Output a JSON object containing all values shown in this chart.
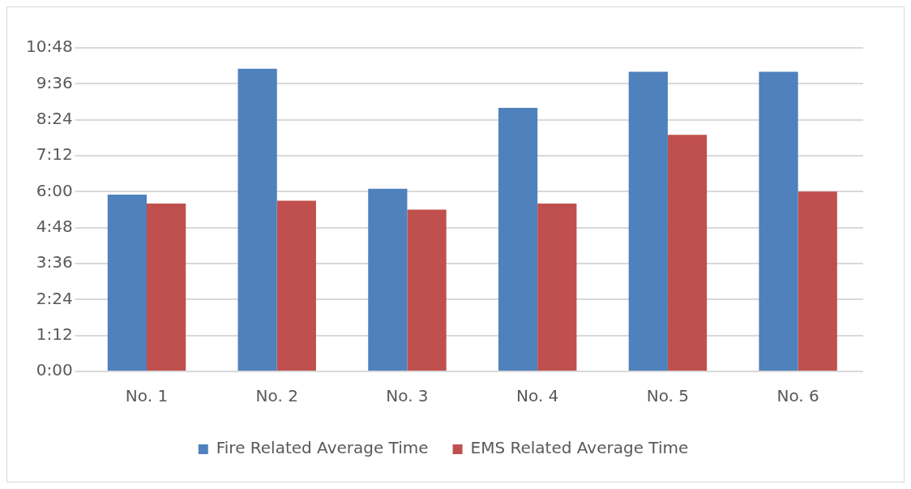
{
  "chart_data": {
    "type": "bar",
    "categories": [
      "No. 1",
      "No. 2",
      "No. 3",
      "No. 4",
      "No. 5",
      "No. 6"
    ],
    "series": [
      {
        "name": "Fire Related Average Time",
        "color": "#4f81bd",
        "values": [
          5.9,
          10.1,
          6.1,
          8.8,
          10.0,
          10.0
        ]
      },
      {
        "name": "EMS Related Average Time",
        "color": "#c0504d",
        "values": [
          5.6,
          5.7,
          5.4,
          5.6,
          7.9,
          6.0
        ]
      }
    ],
    "ylim": [
      0,
      10.8
    ],
    "yticks": [
      {
        "value": 0,
        "label": "0:00"
      },
      {
        "value": 1.2,
        "label": "1:12"
      },
      {
        "value": 2.4,
        "label": "2:24"
      },
      {
        "value": 3.6,
        "label": "3:36"
      },
      {
        "value": 4.8,
        "label": "4:48"
      },
      {
        "value": 6,
        "label": "6:00"
      },
      {
        "value": 7.2,
        "label": "7:12"
      },
      {
        "value": 8.4,
        "label": "8:24"
      },
      {
        "value": 9.6,
        "label": "9:36"
      },
      {
        "value": 10.8,
        "label": "10:48"
      }
    ],
    "grid": "y",
    "legend": "bottom"
  }
}
